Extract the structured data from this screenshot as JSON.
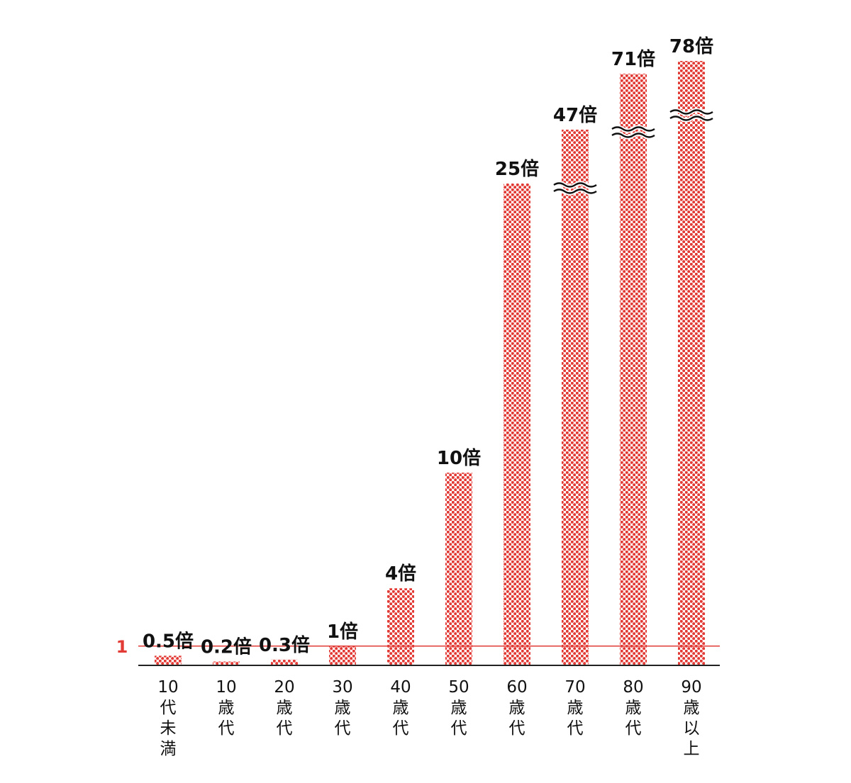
{
  "chart_data": {
    "type": "bar",
    "categories": [
      [
        "10",
        "代",
        "未",
        "満"
      ],
      [
        "10",
        "歳",
        "代"
      ],
      [
        "20",
        "歳",
        "代"
      ],
      [
        "30",
        "歳",
        "代"
      ],
      [
        "40",
        "歳",
        "代"
      ],
      [
        "50",
        "歳",
        "代"
      ],
      [
        "60",
        "歳",
        "代"
      ],
      [
        "70",
        "歳",
        "代"
      ],
      [
        "80",
        "歳",
        "代"
      ],
      [
        "90",
        "歳",
        "以",
        "上"
      ]
    ],
    "values": [
      0.5,
      0.2,
      0.3,
      1,
      4,
      10,
      25,
      47,
      71,
      78
    ],
    "data_labels": [
      "0.5倍",
      "0.2倍",
      "0.3倍",
      "1倍",
      "4倍",
      "10倍",
      "25倍",
      "47倍",
      "71倍",
      "78倍"
    ],
    "broken_axis_bars": [
      "70歳代",
      "80歳代",
      "90歳以上"
    ],
    "reference_line": {
      "value": 1,
      "label": "1"
    },
    "title": "",
    "xlabel": "",
    "ylabel": "",
    "ylim": [
      0,
      78
    ],
    "grid": false,
    "legend": "none",
    "colors": {
      "bar": "#e23a35",
      "reference": "#e23a35",
      "axis": "#222222",
      "text": "#111111"
    }
  }
}
